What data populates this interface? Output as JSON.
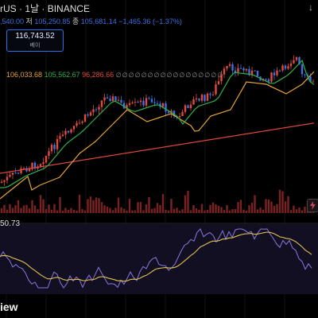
{
  "header": {
    "ohlc_prefix": ",540.00",
    "low_label": "저",
    "low_value": "105,250.85",
    "close_label": "종",
    "close_value": "105,681.14",
    "change": "−1,465.36 (−1.37%)"
  },
  "price_badge": {
    "value": "116,743.52",
    "sub": "베이"
  },
  "symbol_line": "rUS · 1날 · BINANCE",
  "ma_values": [
    "106,033.68",
    "105,562.67",
    "96,286.66"
  ],
  "rsi_value": "50.73",
  "bottom_logo_text": "iew",
  "colors": {
    "bg": "#000000",
    "up": "#e14b3c",
    "down": "#3f6fe0",
    "ma_short": "#2fb04a",
    "ma_mid": "#e8a33a",
    "ma_long": "#e0483b",
    "rsi": "#8877dd",
    "rsi_ma": "#e0c050",
    "volume": "#7a2222"
  },
  "icons": {
    "top_right": "arrow-down-icon",
    "lightning": "lightning-icon",
    "hidden_dots": "hidden-indicator-icon"
  }
}
